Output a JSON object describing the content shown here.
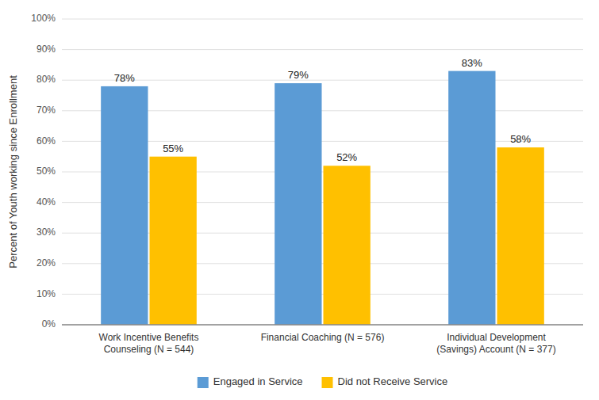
{
  "chart_data": {
    "type": "bar",
    "categories": [
      "Work Incentive Benefits\nCounseling (N = 544)",
      "Financial Coaching (N = 576)",
      "Individual Development\n(Savings) Account (N = 377)"
    ],
    "series": [
      {
        "name": "Engaged in Service",
        "color": "#5B9BD5",
        "values": [
          78,
          79,
          83
        ],
        "value_labels": [
          "78%",
          "79%",
          "83%"
        ]
      },
      {
        "name": "Did not Receive Service",
        "color": "#FFC000",
        "values": [
          55,
          52,
          58
        ],
        "value_labels": [
          "55%",
          "52%",
          "58%"
        ]
      }
    ],
    "y_label": "Percent of Youth working since Enrollment",
    "ylim": [
      0,
      100
    ],
    "yticks": [
      {
        "value": 0,
        "label": "0%"
      },
      {
        "value": 10,
        "label": "10%"
      },
      {
        "value": 20,
        "label": "20%"
      },
      {
        "value": 30,
        "label": "30%"
      },
      {
        "value": 40,
        "label": "40%"
      },
      {
        "value": 50,
        "label": "50%"
      },
      {
        "value": 60,
        "label": "60%"
      },
      {
        "value": 70,
        "label": "70%"
      },
      {
        "value": 80,
        "label": "80%"
      },
      {
        "value": 90,
        "label": "90%"
      },
      {
        "value": 100,
        "label": "100%"
      }
    ],
    "grid": true,
    "legend": "bottom",
    "data_labels": true
  }
}
